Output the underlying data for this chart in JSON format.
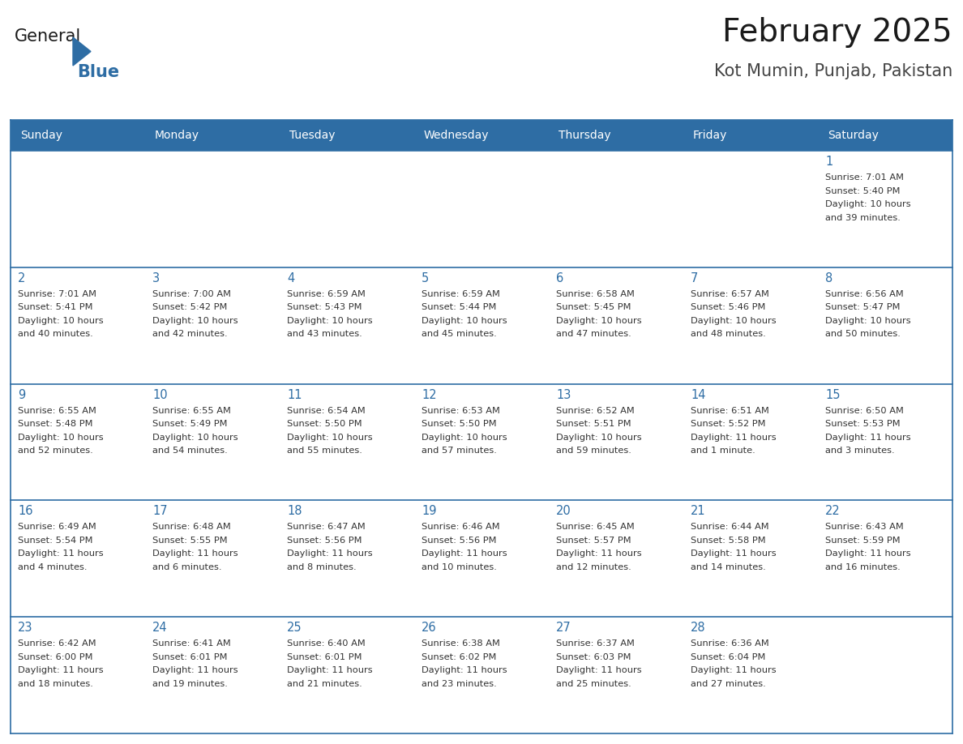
{
  "title": "February 2025",
  "subtitle": "Kot Mumin, Punjab, Pakistan",
  "header_bg": "#2e6da4",
  "header_text_color": "#ffffff",
  "cell_bg": "#ffffff",
  "border_color": "#2e6da4",
  "day_names": [
    "Sunday",
    "Monday",
    "Tuesday",
    "Wednesday",
    "Thursday",
    "Friday",
    "Saturday"
  ],
  "title_color": "#1a1a1a",
  "subtitle_color": "#444444",
  "day_num_color": "#2e6da4",
  "info_color": "#333333",
  "logo_general_color": "#1a1a1a",
  "logo_blue_color": "#2e6da4",
  "logo_triangle_color": "#2e6da4",
  "calendar": [
    [
      null,
      null,
      null,
      null,
      null,
      null,
      {
        "day": 1,
        "sunrise": "7:01 AM",
        "sunset": "5:40 PM",
        "daylight": "10 hours\nand 39 minutes."
      }
    ],
    [
      {
        "day": 2,
        "sunrise": "7:01 AM",
        "sunset": "5:41 PM",
        "daylight": "10 hours\nand 40 minutes."
      },
      {
        "day": 3,
        "sunrise": "7:00 AM",
        "sunset": "5:42 PM",
        "daylight": "10 hours\nand 42 minutes."
      },
      {
        "day": 4,
        "sunrise": "6:59 AM",
        "sunset": "5:43 PM",
        "daylight": "10 hours\nand 43 minutes."
      },
      {
        "day": 5,
        "sunrise": "6:59 AM",
        "sunset": "5:44 PM",
        "daylight": "10 hours\nand 45 minutes."
      },
      {
        "day": 6,
        "sunrise": "6:58 AM",
        "sunset": "5:45 PM",
        "daylight": "10 hours\nand 47 minutes."
      },
      {
        "day": 7,
        "sunrise": "6:57 AM",
        "sunset": "5:46 PM",
        "daylight": "10 hours\nand 48 minutes."
      },
      {
        "day": 8,
        "sunrise": "6:56 AM",
        "sunset": "5:47 PM",
        "daylight": "10 hours\nand 50 minutes."
      }
    ],
    [
      {
        "day": 9,
        "sunrise": "6:55 AM",
        "sunset": "5:48 PM",
        "daylight": "10 hours\nand 52 minutes."
      },
      {
        "day": 10,
        "sunrise": "6:55 AM",
        "sunset": "5:49 PM",
        "daylight": "10 hours\nand 54 minutes."
      },
      {
        "day": 11,
        "sunrise": "6:54 AM",
        "sunset": "5:50 PM",
        "daylight": "10 hours\nand 55 minutes."
      },
      {
        "day": 12,
        "sunrise": "6:53 AM",
        "sunset": "5:50 PM",
        "daylight": "10 hours\nand 57 minutes."
      },
      {
        "day": 13,
        "sunrise": "6:52 AM",
        "sunset": "5:51 PM",
        "daylight": "10 hours\nand 59 minutes."
      },
      {
        "day": 14,
        "sunrise": "6:51 AM",
        "sunset": "5:52 PM",
        "daylight": "11 hours\nand 1 minute."
      },
      {
        "day": 15,
        "sunrise": "6:50 AM",
        "sunset": "5:53 PM",
        "daylight": "11 hours\nand 3 minutes."
      }
    ],
    [
      {
        "day": 16,
        "sunrise": "6:49 AM",
        "sunset": "5:54 PM",
        "daylight": "11 hours\nand 4 minutes."
      },
      {
        "day": 17,
        "sunrise": "6:48 AM",
        "sunset": "5:55 PM",
        "daylight": "11 hours\nand 6 minutes."
      },
      {
        "day": 18,
        "sunrise": "6:47 AM",
        "sunset": "5:56 PM",
        "daylight": "11 hours\nand 8 minutes."
      },
      {
        "day": 19,
        "sunrise": "6:46 AM",
        "sunset": "5:56 PM",
        "daylight": "11 hours\nand 10 minutes."
      },
      {
        "day": 20,
        "sunrise": "6:45 AM",
        "sunset": "5:57 PM",
        "daylight": "11 hours\nand 12 minutes."
      },
      {
        "day": 21,
        "sunrise": "6:44 AM",
        "sunset": "5:58 PM",
        "daylight": "11 hours\nand 14 minutes."
      },
      {
        "day": 22,
        "sunrise": "6:43 AM",
        "sunset": "5:59 PM",
        "daylight": "11 hours\nand 16 minutes."
      }
    ],
    [
      {
        "day": 23,
        "sunrise": "6:42 AM",
        "sunset": "6:00 PM",
        "daylight": "11 hours\nand 18 minutes."
      },
      {
        "day": 24,
        "sunrise": "6:41 AM",
        "sunset": "6:01 PM",
        "daylight": "11 hours\nand 19 minutes."
      },
      {
        "day": 25,
        "sunrise": "6:40 AM",
        "sunset": "6:01 PM",
        "daylight": "11 hours\nand 21 minutes."
      },
      {
        "day": 26,
        "sunrise": "6:38 AM",
        "sunset": "6:02 PM",
        "daylight": "11 hours\nand 23 minutes."
      },
      {
        "day": 27,
        "sunrise": "6:37 AM",
        "sunset": "6:03 PM",
        "daylight": "11 hours\nand 25 minutes."
      },
      {
        "day": 28,
        "sunrise": "6:36 AM",
        "sunset": "6:04 PM",
        "daylight": "11 hours\nand 27 minutes."
      },
      null
    ]
  ]
}
